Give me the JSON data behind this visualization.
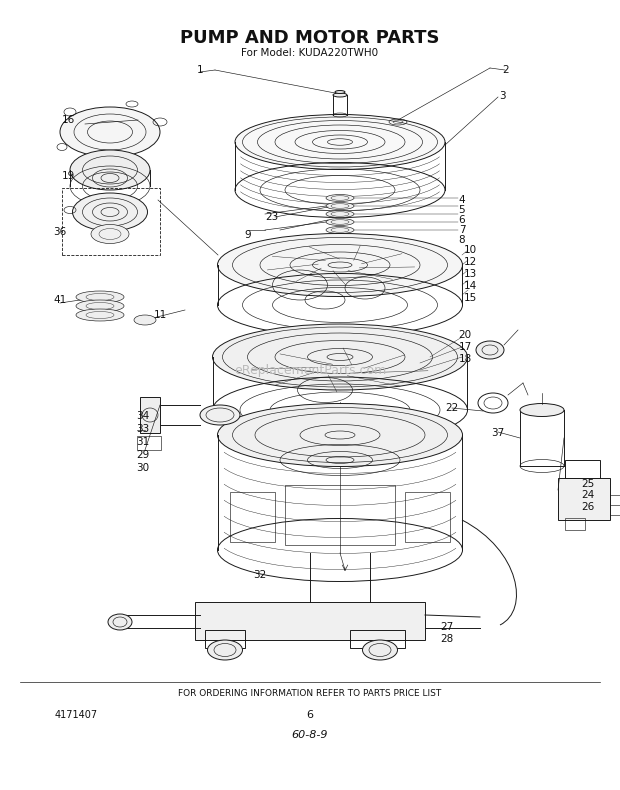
{
  "title": "PUMP AND MOTOR PARTS",
  "subtitle": "For Model: KUDA220TWH0",
  "footer_text": "FOR ORDERING INFORMATION REFER TO PARTS PRICE LIST",
  "part_number": "4171407",
  "page_number": "6",
  "code": "60-8-9",
  "watermark": "eReplacementParts.com",
  "bg_color": "#ffffff",
  "line_color": "#1a1a1a",
  "text_color": "#111111",
  "watermark_color": "#bbbbbb",
  "fig_w": 6.2,
  "fig_h": 7.9,
  "dpi": 100
}
